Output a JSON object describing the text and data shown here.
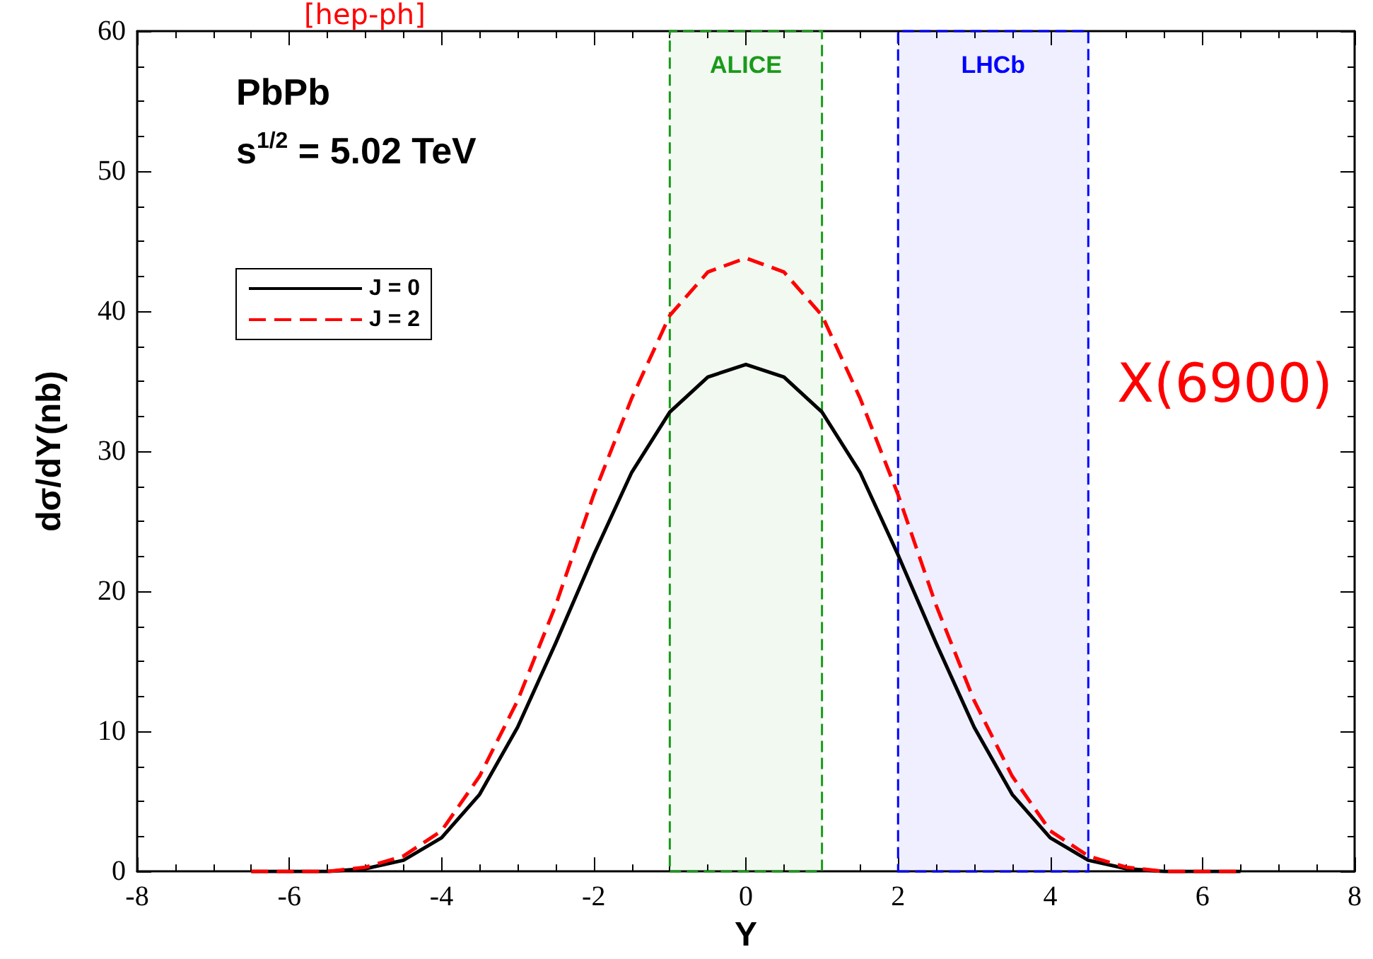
{
  "chart_data": {
    "type": "line",
    "xlabel": "Y",
    "ylabel": "dσ/dY(nb)",
    "annotations": [
      "[hep-ph]",
      "PbPb",
      "s$^{1/2}$ = 5.02 TeV",
      "X(6900)"
    ],
    "x": [
      -6.5,
      -6,
      -5.5,
      -5,
      -4.5,
      -4,
      -3.5,
      -3,
      -2.5,
      -2,
      -1.5,
      -1,
      -0.5,
      0,
      0.5,
      1,
      1.5,
      2,
      2.5,
      3,
      3.5,
      4,
      4.5,
      5,
      5.5,
      6,
      6.5
    ],
    "series": [
      {
        "name": "J = 0",
        "color": "#000000",
        "line_style": "solid",
        "values": [
          0,
          0,
          0,
          0.2,
          0.8,
          2.4,
          5.5,
          10.3,
          16.3,
          22.6,
          28.5,
          32.8,
          35.3,
          36.2,
          35.3,
          32.8,
          28.5,
          22.6,
          16.3,
          10.3,
          5.5,
          2.4,
          0.8,
          0.2,
          0,
          0,
          0
        ]
      },
      {
        "name": "J = 2",
        "color": "#ff0000",
        "line_style": "dashed",
        "values": [
          0,
          0,
          0,
          0.3,
          1.1,
          2.9,
          6.8,
          12.2,
          19,
          26.9,
          33.8,
          39.7,
          42.8,
          43.8,
          42.8,
          39.7,
          33.8,
          26.9,
          19,
          12.2,
          6.8,
          2.9,
          1.1,
          0.3,
          0,
          0,
          0
        ]
      }
    ],
    "bands": [
      {
        "axis": "x",
        "from": -1,
        "to": 1,
        "label": "ALICE",
        "color": "#1a9a1a"
      },
      {
        "axis": "x",
        "from": 2,
        "to": 4.5,
        "label": "LHCb",
        "color": "#0000ff"
      }
    ],
    "xlim": [
      -8,
      8
    ],
    "xticks": [
      -8,
      -6,
      -4,
      -2,
      0,
      2,
      4,
      6,
      8
    ],
    "ylim": [
      0,
      60
    ],
    "yticks": [
      0,
      10,
      20,
      30,
      40,
      50,
      60
    ],
    "legend": "top left",
    "marker": "none",
    "grid": false
  }
}
